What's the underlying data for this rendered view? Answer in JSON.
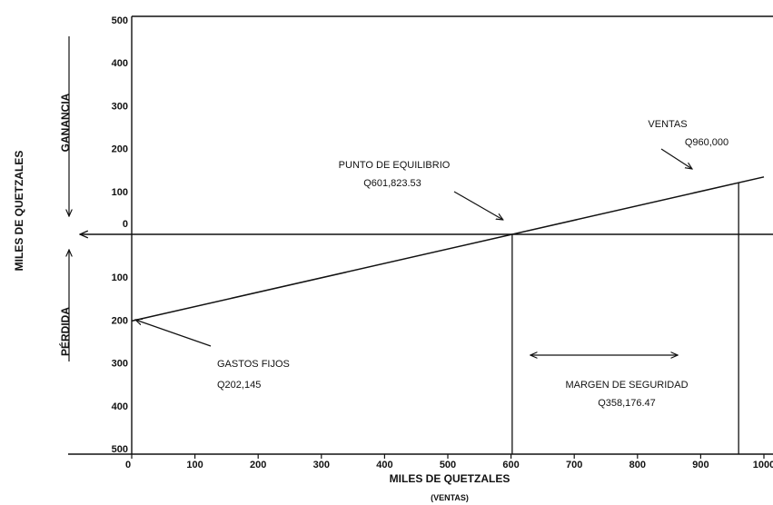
{
  "chart_data": {
    "type": "line",
    "xlabel": "MILES DE QUETZALES",
    "xlabel_sub": "(VENTAS)",
    "ylabel": "MILES DE QUETZALES",
    "zone_top": "GANANCIA",
    "zone_bottom": "PÉRDIDA",
    "x_ticks": [
      "0",
      "100",
      "200",
      "300",
      "400",
      "500",
      "600",
      "700",
      "800",
      "900",
      "1000"
    ],
    "y_ticks_top": [
      "0",
      "100",
      "200",
      "300",
      "400",
      "500"
    ],
    "y_ticks_bottom": [
      "100",
      "200",
      "300",
      "400",
      "500"
    ],
    "xlim": [
      0,
      1000
    ],
    "ylim": [
      -500,
      500
    ],
    "series": [
      {
        "x": [
          0,
          601.82353,
          1000
        ],
        "y": [
          -202.145,
          0,
          133.9
        ]
      }
    ],
    "annotations": {
      "gastos": {
        "line1": "GASTOS FIJOS",
        "line2": "Q202,145"
      },
      "equilibrio": {
        "line1": "PUNTO DE EQUILIBRIO",
        "line2": "Q601,823.53"
      },
      "ventas": {
        "line1": "VENTAS",
        "line2": "Q960,000"
      },
      "margen": {
        "line1": "MARGEN DE SEGURIDAD",
        "line2": "Q358,176.47"
      }
    },
    "breakeven_x": 601.82353,
    "sales_x": 960
  }
}
